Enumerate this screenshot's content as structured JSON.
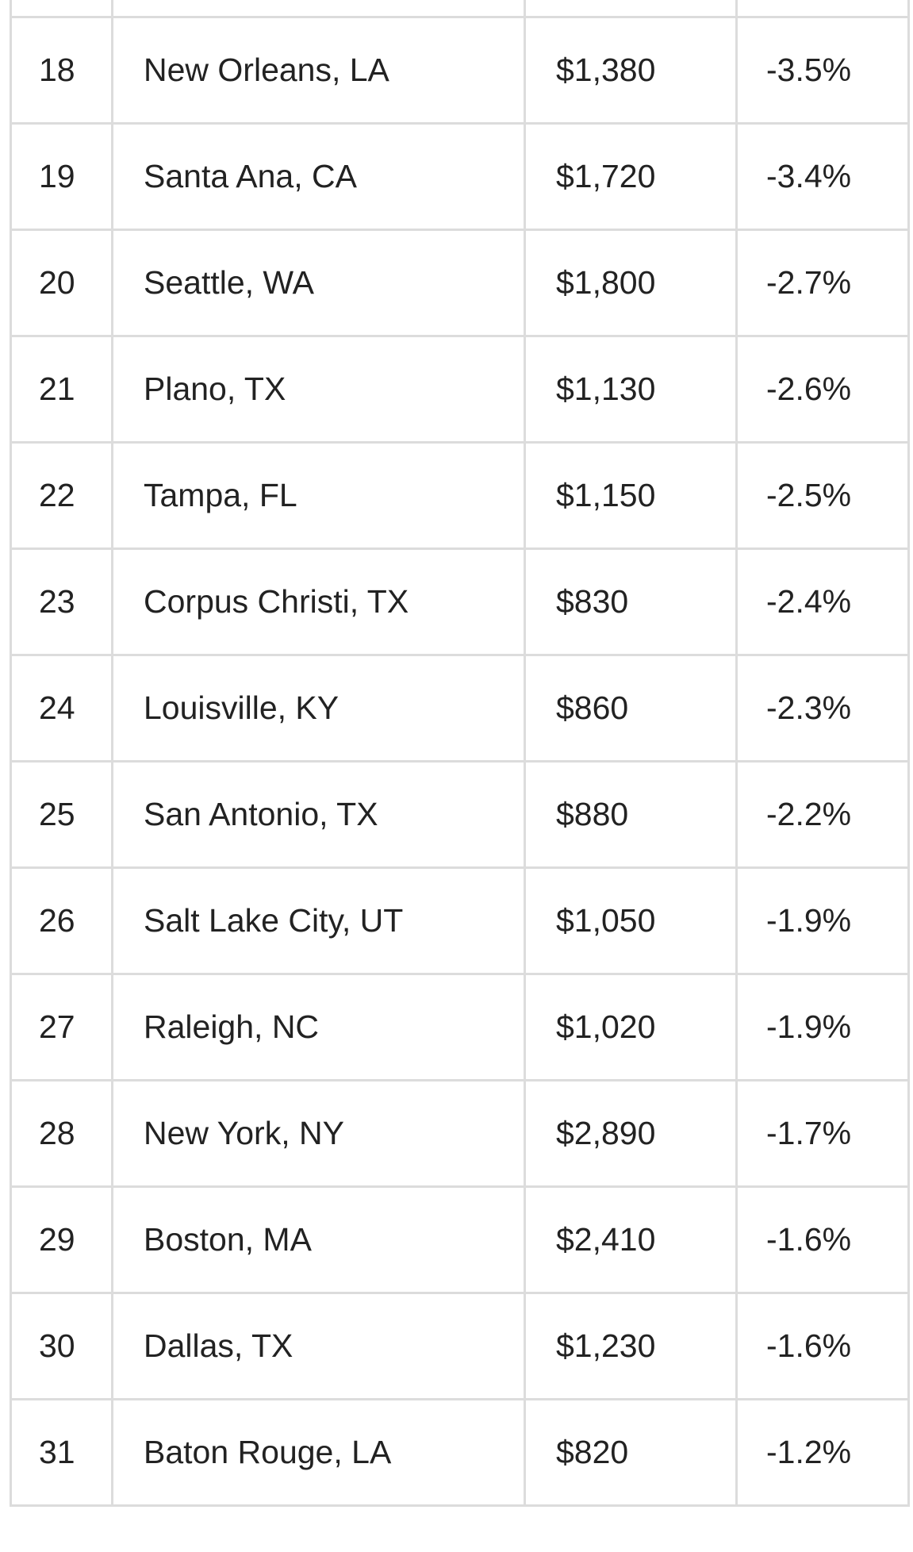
{
  "table": {
    "rows": [
      {
        "rank": "18",
        "city": "New Orleans, LA",
        "rent": "$1,380",
        "change": "-3.5%"
      },
      {
        "rank": "19",
        "city": "Santa Ana, CA",
        "rent": "$1,720",
        "change": "-3.4%"
      },
      {
        "rank": "20",
        "city": "Seattle, WA",
        "rent": "$1,800",
        "change": "-2.7%"
      },
      {
        "rank": "21",
        "city": "Plano, TX",
        "rent": "$1,130",
        "change": "-2.6%"
      },
      {
        "rank": "22",
        "city": "Tampa, FL",
        "rent": "$1,150",
        "change": "-2.5%"
      },
      {
        "rank": "23",
        "city": "Corpus Christi, TX",
        "rent": "$830",
        "change": "-2.4%"
      },
      {
        "rank": "24",
        "city": "Louisville, KY",
        "rent": "$860",
        "change": "-2.3%"
      },
      {
        "rank": "25",
        "city": "San Antonio, TX",
        "rent": "$880",
        "change": "-2.2%"
      },
      {
        "rank": "26",
        "city": "Salt Lake City, UT",
        "rent": "$1,050",
        "change": "-1.9%"
      },
      {
        "rank": "27",
        "city": "Raleigh, NC",
        "rent": "$1,020",
        "change": "-1.9%"
      },
      {
        "rank": "28",
        "city": "New York, NY",
        "rent": "$2,890",
        "change": "-1.7%"
      },
      {
        "rank": "29",
        "city": "Boston, MA",
        "rent": "$2,410",
        "change": "-1.6%"
      },
      {
        "rank": "30",
        "city": "Dallas, TX",
        "rent": "$1,230",
        "change": "-1.6%"
      },
      {
        "rank": "31",
        "city": "Baton Rouge, LA",
        "rent": "$820",
        "change": "-1.2%"
      }
    ]
  }
}
